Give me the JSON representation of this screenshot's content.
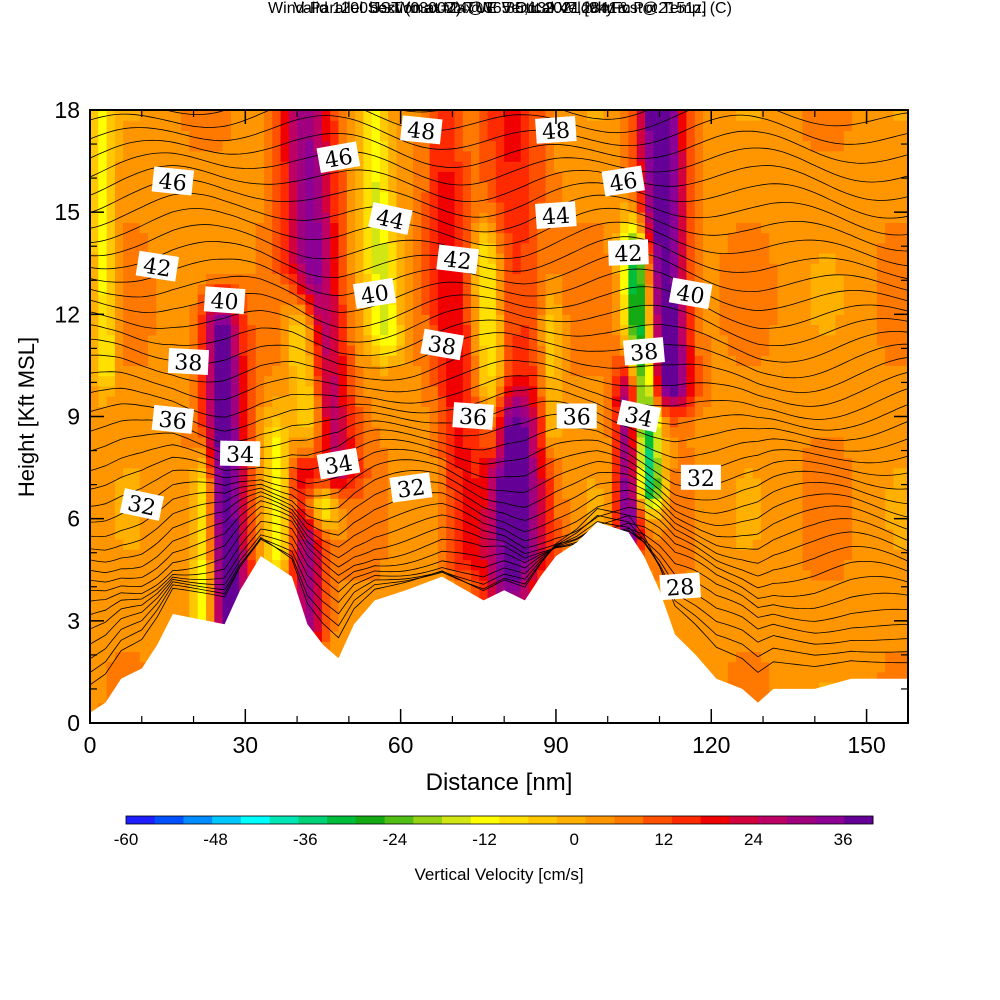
{
  "header": {
    "title": "Wind-Parallel Section at Max W: Vertical Velocity & Pot.Temp.",
    "title_tag": "(C)",
    "valid_prefix": "Valid 1200 JST",
    "valid_utc": "(0300Z)",
    "valid_date": "TUE 5 Oct 2021",
    "forecast": "[9hrFcst@2151z]",
    "box_info": "boxWmax=24@36.85,139.47,2841m"
  },
  "chart_data": {
    "type": "heatmap",
    "xlabel": "Distance [nm]",
    "ylabel": "Height [Kft MSL]",
    "xlim": [
      0,
      158
    ],
    "ylim": [
      0,
      18
    ],
    "xticks": [
      0,
      30,
      60,
      90,
      120,
      150
    ],
    "yticks": [
      0,
      3,
      6,
      9,
      12,
      15,
      18
    ],
    "colorbar": {
      "label": "Vertical Velocity [cm/s]",
      "ticks": [
        -60,
        -48,
        -36,
        -24,
        -12,
        0,
        12,
        24,
        36
      ],
      "range": [
        -60,
        40
      ],
      "colors": [
        "#1e1eff",
        "#0050ff",
        "#008cff",
        "#00c8ff",
        "#00ffff",
        "#00e6b4",
        "#00d278",
        "#00be3c",
        "#14aa14",
        "#50be14",
        "#96d214",
        "#d2e614",
        "#ffff00",
        "#ffe000",
        "#ffc800",
        "#ffb000",
        "#ff9600",
        "#ff7800",
        "#ff5000",
        "#ff2a00",
        "#f00000",
        "#d2003c",
        "#be0064",
        "#a0007f",
        "#8c0096",
        "#640096"
      ]
    },
    "pot_temp_labels": [
      {
        "text": "48",
        "x": 64,
        "y": 17.4
      },
      {
        "text": "48",
        "x": 90,
        "y": 17.4
      },
      {
        "text": "46",
        "x": 48,
        "y": 16.6
      },
      {
        "text": "46",
        "x": 16,
        "y": 15.9
      },
      {
        "text": "46",
        "x": 103,
        "y": 15.9
      },
      {
        "text": "44",
        "x": 58,
        "y": 14.8
      },
      {
        "text": "44",
        "x": 90,
        "y": 14.9
      },
      {
        "text": "42",
        "x": 13,
        "y": 13.4
      },
      {
        "text": "42",
        "x": 71,
        "y": 13.6
      },
      {
        "text": "42",
        "x": 104,
        "y": 13.8
      },
      {
        "text": "40",
        "x": 26,
        "y": 12.4
      },
      {
        "text": "40",
        "x": 55,
        "y": 12.6
      },
      {
        "text": "40",
        "x": 116,
        "y": 12.6
      },
      {
        "text": "38",
        "x": 19,
        "y": 10.6
      },
      {
        "text": "38",
        "x": 68,
        "y": 11.1
      },
      {
        "text": "38",
        "x": 107,
        "y": 10.9
      },
      {
        "text": "36",
        "x": 16,
        "y": 8.9
      },
      {
        "text": "36",
        "x": 74,
        "y": 9.0
      },
      {
        "text": "36",
        "x": 94,
        "y": 9.0
      },
      {
        "text": "34",
        "x": 29,
        "y": 7.9
      },
      {
        "text": "34",
        "x": 48,
        "y": 7.6
      },
      {
        "text": "34",
        "x": 106,
        "y": 9.0
      },
      {
        "text": "32",
        "x": 10,
        "y": 6.4
      },
      {
        "text": "32",
        "x": 62,
        "y": 6.9
      },
      {
        "text": "32",
        "x": 118,
        "y": 7.2
      },
      {
        "text": "28",
        "x": 114,
        "y": 4.0
      }
    ],
    "terrain": [
      [
        0,
        0.3
      ],
      [
        3,
        0.6
      ],
      [
        6,
        1.3
      ],
      [
        10,
        1.6
      ],
      [
        13,
        2.3
      ],
      [
        16,
        3.2
      ],
      [
        26,
        2.9
      ],
      [
        29,
        3.9
      ],
      [
        33,
        4.9
      ],
      [
        39,
        4.3
      ],
      [
        42,
        2.9
      ],
      [
        45,
        2.3
      ],
      [
        48,
        1.9
      ],
      [
        51,
        2.9
      ],
      [
        55,
        3.6
      ],
      [
        61,
        3.9
      ],
      [
        68,
        4.3
      ],
      [
        76,
        3.6
      ],
      [
        80,
        3.9
      ],
      [
        84,
        3.6
      ],
      [
        87,
        4.3
      ],
      [
        90,
        4.9
      ],
      [
        94,
        5.3
      ],
      [
        98,
        5.9
      ],
      [
        104,
        5.6
      ],
      [
        107,
        4.9
      ],
      [
        110,
        3.9
      ],
      [
        113,
        2.6
      ],
      [
        117,
        2.0
      ],
      [
        121,
        1.3
      ],
      [
        126,
        1.0
      ],
      [
        129,
        0.6
      ],
      [
        132,
        1.0
      ],
      [
        140,
        1.0
      ],
      [
        147,
        1.3
      ],
      [
        158,
        1.3
      ]
    ],
    "updrafts": [
      {
        "x": 27,
        "w": 36,
        "width": 4,
        "y0": 2.9,
        "y1": 11.5,
        "tilt": -0.18
      },
      {
        "x": 42,
        "w": 28,
        "width": 3.2,
        "y0": 3.0,
        "y1": 7.0,
        "tilt": 0
      },
      {
        "x": 46,
        "w": 30,
        "width": 5,
        "y0": 7.5,
        "y1": 18,
        "tilt": -0.45
      },
      {
        "x": 81,
        "w": 28,
        "width": 5,
        "y0": 3.8,
        "y1": 8.5,
        "tilt": 0
      },
      {
        "x": 104,
        "w": 34,
        "width": 2.5,
        "y0": 5.6,
        "y1": 9.5,
        "tilt": 0
      },
      {
        "x": 112,
        "w": 40,
        "width": 4.2,
        "y0": 10,
        "y1": 18,
        "tilt": -0.25
      },
      {
        "x": 72,
        "w": 14,
        "width": 4,
        "y0": 5.0,
        "y1": 18,
        "tilt": -0.3
      },
      {
        "x": 85,
        "w": 12,
        "width": 6,
        "y0": 5.0,
        "y1": 18,
        "tilt": -0.3
      }
    ],
    "downdrafts": [
      {
        "x": 22,
        "w": -24,
        "width": 2.2,
        "y0": 3.3,
        "y1": 7.0,
        "tilt": 0
      },
      {
        "x": 36,
        "w": -14,
        "width": 2.2,
        "y0": 5.0,
        "y1": 8.0,
        "tilt": 0
      },
      {
        "x": 44,
        "w": -30,
        "width": 3.4,
        "y0": 6.5,
        "y1": 11.5,
        "tilt": -0.55
      },
      {
        "x": 57,
        "w": -18,
        "width": 3.0,
        "y0": 11.5,
        "y1": 18,
        "tilt": -0.4
      },
      {
        "x": 78,
        "w": -18,
        "width": 2.6,
        "y0": 8.5,
        "y1": 13.5,
        "tilt": -0.3
      },
      {
        "x": 108,
        "w": -42,
        "width": 2.6,
        "y0": 7.0,
        "y1": 13.5,
        "tilt": -0.4
      },
      {
        "x": 3,
        "w": -16,
        "width": 2.0,
        "y0": 10.5,
        "y1": 18,
        "tilt": -0.1
      },
      {
        "x": 89,
        "w": -12,
        "width": 2.0,
        "y0": 8.5,
        "y1": 11.5,
        "tilt": 0
      }
    ]
  }
}
